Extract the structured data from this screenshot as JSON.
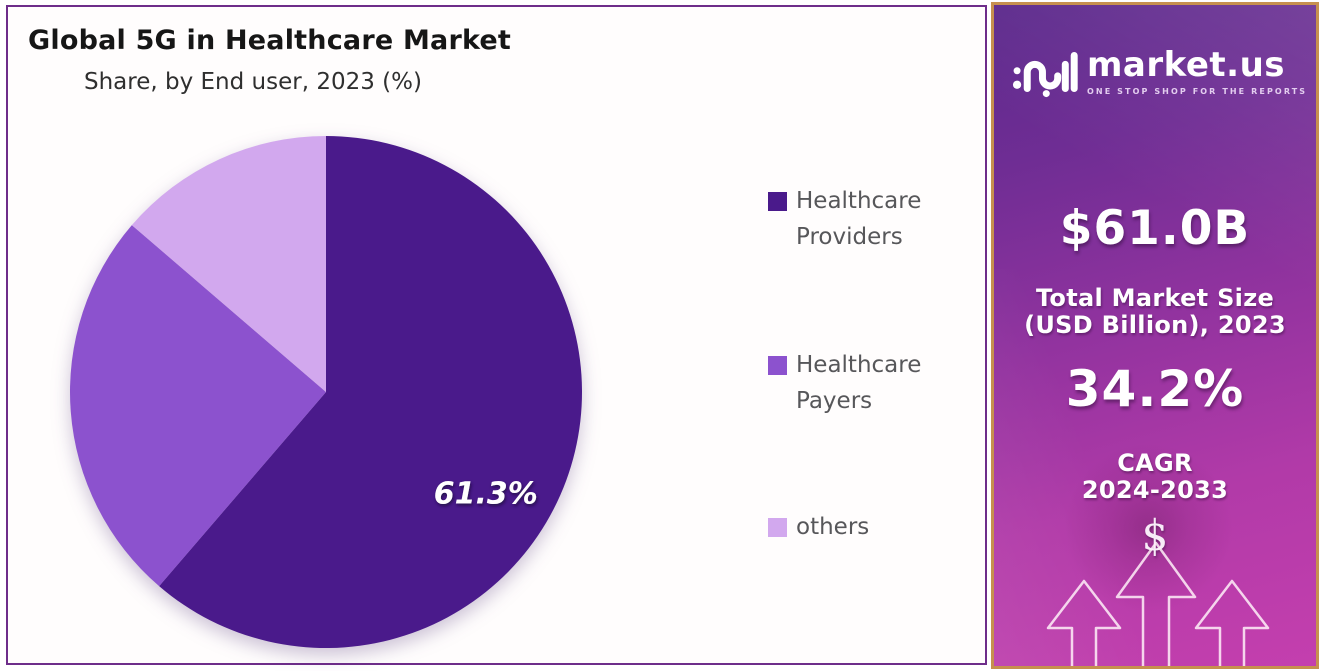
{
  "chart_box": {
    "border_color": "#6E2D8A",
    "background": "#fffdfd"
  },
  "chart_data": {
    "type": "pie",
    "title": "Global 5G in Healthcare Market",
    "subtitle": "Share, by End user, 2023 (%)",
    "unit": "%",
    "legend_position": "right",
    "start_angle": "top, clockwise",
    "slices": [
      {
        "label": "Healthcare Providers",
        "value": 61.3,
        "color": "#4A1A8B",
        "data_label": "61.3%"
      },
      {
        "label": "Healthcare Payers",
        "value": 25.0,
        "color": "#8C52CE",
        "data_label": ""
      },
      {
        "label": "others",
        "value": 13.7,
        "color": "#D2A8EE",
        "data_label": ""
      }
    ]
  },
  "side_panel": {
    "brand": "market.us",
    "tagline": "ONE STOP SHOP FOR THE REPORTS",
    "market_size_value": "$61.0B",
    "market_size_label_line1": "Total Market Size",
    "market_size_label_line2": "(USD Billion), 2023",
    "cagr_value": "34.2%",
    "cagr_label_line1": "CAGR",
    "cagr_label_line2": "2024-2033",
    "dollar_glyph": "$",
    "colors": {
      "gradient_top": "#5C2A8C",
      "gradient_bottom": "#C43FAE",
      "border": "#C6904F",
      "text": "#ffffff"
    }
  }
}
